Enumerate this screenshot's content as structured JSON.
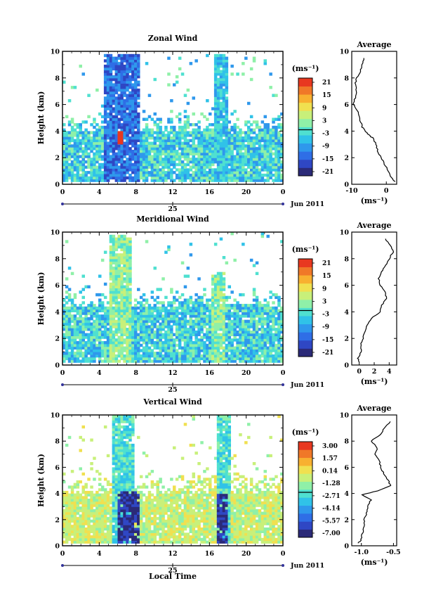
{
  "figure": {
    "x_axis_label": "Local Time",
    "date_label": "Jun 2011",
    "day_label": "25",
    "height_label": "Height (km)",
    "unit_label": "(ms⁻¹)",
    "avg_unit_label": "(ms⁻¹)",
    "avg_title": "Average"
  },
  "colors": {
    "colormap": [
      "#2b2a78",
      "#2f47c4",
      "#2f6ee6",
      "#2f98ec",
      "#30c2e8",
      "#4fe0d0",
      "#8ff0a8",
      "#c8f07a",
      "#f0e050",
      "#f8b030",
      "#f07828",
      "#e83820"
    ],
    "zonal_main": "#2f6ee6",
    "zonal_light": "#30c2e8",
    "meridional_main": "#4fe0d0",
    "vertical_main": "#c8f07a",
    "vertical_deep": "#2b2a78"
  },
  "chart_data": [
    {
      "type": "heatmap",
      "title": "Zonal Wind",
      "xlabel": "",
      "ylabel": "Height (km)",
      "xlim": [
        0,
        24
      ],
      "ylim": [
        0,
        10
      ],
      "x_ticks": [
        "0",
        "4",
        "8",
        "12",
        "16",
        "20",
        "0"
      ],
      "y_ticks": [
        "0",
        "2",
        "4",
        "6",
        "8",
        "10"
      ],
      "colorbar": {
        "unit": "(ms⁻¹)",
        "ticks": [
          "21",
          "15",
          "9",
          "3",
          "-3",
          "-9",
          "-15",
          "-21"
        ],
        "range": [
          -24,
          24
        ]
      },
      "average_profile": {
        "title": "Average",
        "xlabel": "(ms⁻¹)",
        "xlim": [
          -10,
          3
        ],
        "x_ticks": [
          "-10",
          "0"
        ],
        "y_ticks": [
          "0",
          "2",
          "4",
          "6",
          "8",
          "10"
        ],
        "height_km": [
          0.2,
          0.5,
          1.0,
          1.5,
          2.0,
          2.5,
          3.0,
          3.5,
          3.8,
          4.0,
          4.3,
          4.8,
          5.3,
          5.8,
          6.0,
          6.5,
          7.0,
          7.5,
          8.0,
          8.5,
          9.0,
          9.5
        ],
        "values": [
          2.5,
          1.5,
          0.5,
          -0.5,
          -1.5,
          -2.5,
          -3.0,
          -4.0,
          -5.5,
          -6.0,
          -7.0,
          -7.5,
          -8.0,
          -9.0,
          -9.5,
          -9.0,
          -8.5,
          -9.0,
          -8.5,
          -7.5,
          -7.0,
          -6.5
        ]
      }
    },
    {
      "type": "heatmap",
      "title": "Meridional Wind",
      "xlabel": "",
      "ylabel": "Height (km)",
      "xlim": [
        0,
        24
      ],
      "ylim": [
        0,
        10
      ],
      "x_ticks": [
        "0",
        "4",
        "8",
        "12",
        "16",
        "20",
        "0"
      ],
      "y_ticks": [
        "0",
        "2",
        "4",
        "6",
        "8",
        "10"
      ],
      "colorbar": {
        "unit": "(ms⁻¹)",
        "ticks": [
          "21",
          "15",
          "9",
          "3",
          "-3",
          "-9",
          "-15",
          "-21"
        ],
        "range": [
          -24,
          24
        ]
      },
      "average_profile": {
        "title": "Average",
        "xlabel": "(ms⁻¹)",
        "xlim": [
          -1,
          5
        ],
        "x_ticks": [
          "0",
          "2",
          "4"
        ],
        "y_ticks": [
          "0",
          "2",
          "4",
          "6",
          "8",
          "10"
        ],
        "height_km": [
          0.2,
          0.5,
          1.0,
          1.5,
          2.0,
          2.5,
          3.0,
          3.5,
          4.0,
          4.5,
          5.0,
          5.5,
          6.0,
          6.5,
          7.0,
          7.5,
          8.0,
          8.5,
          9.0,
          9.5
        ],
        "values": [
          0.0,
          -0.2,
          0.3,
          0.2,
          0.5,
          0.8,
          1.0,
          1.6,
          2.8,
          3.0,
          3.6,
          3.4,
          2.8,
          2.6,
          3.0,
          3.5,
          4.0,
          4.5,
          4.2,
          3.5
        ]
      }
    },
    {
      "type": "heatmap",
      "title": "Vertical Wind",
      "xlabel": "Local Time",
      "ylabel": "Height (km)",
      "xlim": [
        0,
        24
      ],
      "ylim": [
        0,
        10
      ],
      "x_ticks": [
        "0",
        "4",
        "8",
        "12",
        "16",
        "20",
        "0"
      ],
      "y_ticks": [
        "0",
        "2",
        "4",
        "6",
        "8",
        "10"
      ],
      "colorbar": {
        "unit": "(ms⁻¹)",
        "ticks": [
          "3.00",
          "1.57",
          "0.14",
          "-1.28",
          "-2.71",
          "-4.14",
          "-5.57",
          "-7.00"
        ],
        "range": [
          -8,
          4
        ]
      },
      "average_profile": {
        "title": "Average",
        "xlabel": "(ms⁻¹)",
        "xlim": [
          -1.15,
          -0.45
        ],
        "x_ticks": [
          "-1.0",
          "-0.5"
        ],
        "y_ticks": [
          "0",
          "2",
          "4",
          "6",
          "8",
          "10"
        ],
        "height_km": [
          0.2,
          0.5,
          1.0,
          1.5,
          2.0,
          2.5,
          3.0,
          3.5,
          3.9,
          4.2,
          4.6,
          5.0,
          5.5,
          6.0,
          6.5,
          7.0,
          7.5,
          8.0,
          8.5,
          9.0,
          9.5
        ],
        "values": [
          -1.05,
          -1.0,
          -0.98,
          -0.95,
          -0.96,
          -0.92,
          -0.9,
          -0.85,
          -0.98,
          -0.75,
          -0.55,
          -0.58,
          -0.65,
          -0.7,
          -0.72,
          -0.8,
          -0.75,
          -0.85,
          -0.7,
          -0.65,
          -0.55
        ]
      }
    }
  ]
}
